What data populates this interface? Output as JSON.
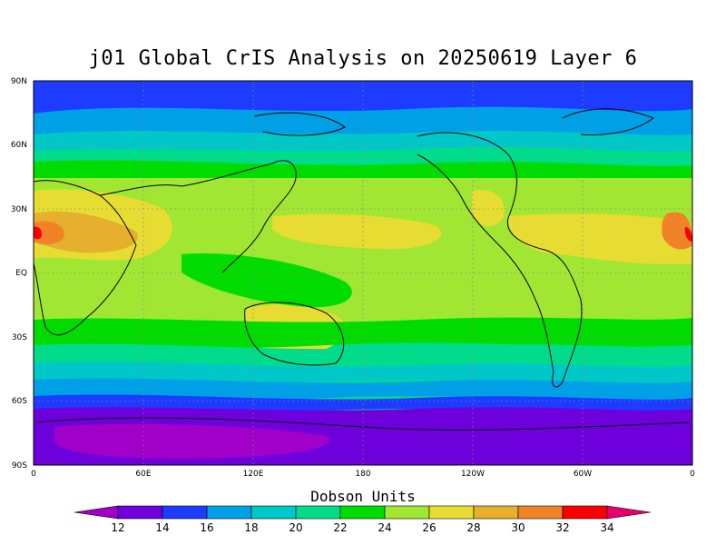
{
  "title": "j01 Global CrIS Analysis on 20250619 Layer 6",
  "units_label": "Dobson Units",
  "lat_ticks": [
    "90N",
    "60N",
    "30N",
    "EQ",
    "30S",
    "60S",
    "90S"
  ],
  "lon_ticks": [
    "0",
    "60E",
    "120E",
    "180",
    "120W",
    "60W",
    "0"
  ],
  "colorbar": {
    "labels": [
      "12",
      "14",
      "16",
      "18",
      "20",
      "22",
      "24",
      "26",
      "28",
      "30",
      "32",
      "34"
    ],
    "colors": [
      "#a000c8",
      "#6e00dc",
      "#1e3cff",
      "#00a0e6",
      "#00c8c8",
      "#00dc8c",
      "#00dc00",
      "#a0e632",
      "#e6dc32",
      "#e6af2d",
      "#f08228",
      "#fa0000",
      "#e6006e"
    ]
  },
  "colors": {
    "polar_s": "#6e00dc",
    "polar_s_deep": "#a000c8",
    "level_16": "#1e3cff",
    "level_18": "#00a0e6",
    "level_20": "#00c8c8",
    "level_22": "#00dc8c",
    "level_24": "#00dc00",
    "level_26": "#a0e632",
    "level_28": "#e6dc32",
    "level_30": "#e6af2d",
    "level_32": "#f08228",
    "level_34": "#fa0000"
  }
}
